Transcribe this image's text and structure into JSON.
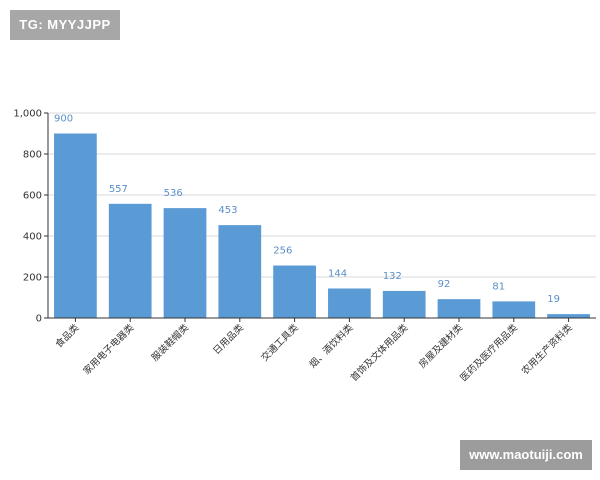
{
  "watermarks": {
    "tag": "TG: MYYJJPP",
    "site": "www.maotuiji.com"
  },
  "colors": {
    "bar": "#5b9bd5",
    "data_label": "#5b8fc9",
    "grid": "#d9d9d9",
    "axis": "#333333"
  },
  "chart_data": {
    "type": "bar",
    "categories": [
      "食品类",
      "家用电子电器类",
      "服装鞋帽类",
      "日用品类",
      "交通工具类",
      "烟、酒饮料类",
      "首饰及文体用品类",
      "房屋及建材类",
      "医药及医疗用品类",
      "农用生产资料类"
    ],
    "values": [
      900,
      557,
      536,
      453,
      256,
      144,
      132,
      92,
      81,
      19
    ],
    "data_labels": [
      "900",
      "557",
      "536",
      "453",
      "256",
      "144",
      "132",
      "92",
      "81",
      "19"
    ],
    "yticks": [
      "0",
      "200",
      "400",
      "600",
      "800",
      "1,000"
    ],
    "ytick_values": [
      0,
      200,
      400,
      600,
      800,
      1000
    ],
    "ylim": [
      0,
      1000
    ],
    "title": "",
    "xlabel": "",
    "ylabel": "",
    "grid": true
  }
}
